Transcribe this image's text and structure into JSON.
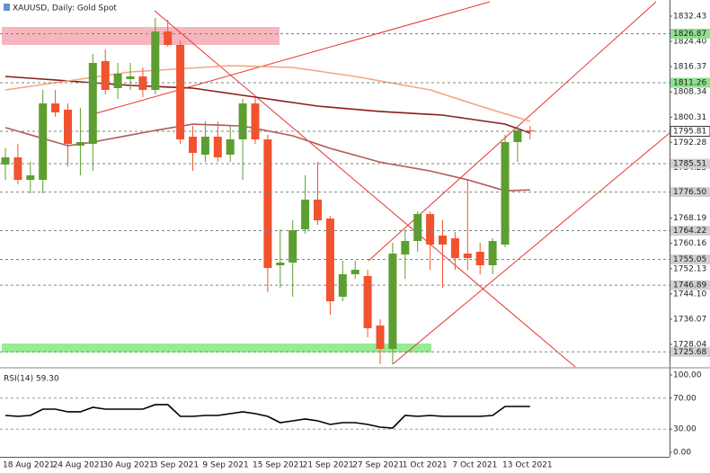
{
  "chart_data": [
    {
      "type": "candlestick",
      "title": "XAUUSD, Daily:  Gold Spot",
      "categories": [
        "18 Aug 2021",
        null,
        null,
        null,
        "24 Aug 2021",
        null,
        null,
        null,
        "30 Aug 2021",
        null,
        null,
        null,
        "3 Sep 2021",
        null,
        null,
        null,
        "9 Sep 2021",
        null,
        null,
        null,
        "15 Sep 2021",
        null,
        null,
        null,
        "21 Sep 2021",
        null,
        null,
        null,
        "27 Sep 2021",
        null,
        null,
        null,
        "1 Oct 2021",
        null,
        null,
        null,
        "7 Oct 2021",
        null,
        null,
        null,
        "13 Oct 2021",
        null,
        null
      ],
      "open": [
        1785.24,
        1787.53,
        1780.38,
        1780.38,
        1804.69,
        1802.69,
        1791.25,
        1791.82,
        1818.13,
        1809.55,
        1812.41,
        1813.27,
        1808.98,
        1827.57,
        1823.28,
        1794.11,
        1788.39,
        1794.11,
        1788.39,
        1793.25,
        1804.69,
        1793.25,
        1753.21,
        1754.07,
        1764.65,
        1774.09,
        1768.08,
        1743.2,
        1750.35,
        1749.78,
        1734.05,
        1726.61,
        1756.64,
        1760.93,
        1769.51,
        1762.65,
        1761.79,
        1756.93,
        1757.5,
        1753.21,
        1759.79,
        1792.39,
        1796.11
      ],
      "high": [
        1790.39,
        1791.82,
        1786.1,
        1808.98,
        1808.98,
        1804.69,
        1803.26,
        1820.42,
        1821.85,
        1817.56,
        1817.56,
        1816.13,
        1831.86,
        1831.29,
        1824.71,
        1797.54,
        1798.97,
        1798.97,
        1797.54,
        1806.12,
        1806.69,
        1794.68,
        1764.65,
        1767.51,
        1781.81,
        1786.1,
        1768.94,
        1754.64,
        1754.64,
        1751.78,
        1736.05,
        1760.36,
        1764.65,
        1770.37,
        1770.37,
        1767.51,
        1763.79,
        1780.38,
        1760.36,
        1761.79,
        1794.68,
        1797.54,
        1797.54
      ],
      "low": [
        1780.38,
        1778.95,
        1776.09,
        1776.09,
        1800.4,
        1784.67,
        1781.81,
        1783.24,
        1807.55,
        1806.12,
        1808.98,
        1806.69,
        1807.55,
        1822.71,
        1791.82,
        1783.24,
        1786.1,
        1786.1,
        1786.1,
        1780.38,
        1791.82,
        1744.63,
        1746.06,
        1743.2,
        1763.22,
        1766.08,
        1737.48,
        1741.77,
        1748.92,
        1730.33,
        1721.75,
        1721.75,
        1748.92,
        1757.5,
        1751.78,
        1746.06,
        1751.78,
        1751.78,
        1750.35,
        1750.35,
        1758.93,
        1786.1,
        1793.25
      ],
      "close": [
        1787.53,
        1780.38,
        1781.81,
        1804.69,
        1801.83,
        1791.82,
        1792.39,
        1817.56,
        1808.98,
        1814.13,
        1813.27,
        1808.98,
        1827.57,
        1823.28,
        1793.25,
        1788.96,
        1794.11,
        1787.53,
        1793.25,
        1804.69,
        1793.25,
        1752.35,
        1754.07,
        1764.36,
        1774.09,
        1767.51,
        1741.77,
        1750.35,
        1751.78,
        1733.19,
        1726.61,
        1756.93,
        1760.93,
        1769.51,
        1759.79,
        1759.79,
        1755.5,
        1755.5,
        1753.21,
        1760.93,
        1792.39,
        1796.11,
        1795.81
      ],
      "up_color": "#5c9e30",
      "down_color": "#f2522e",
      "ylim": [
        1720.89,
        1837.58
      ],
      "yticks": [
        1832.43,
        {
          "value": 1824.4,
          "label": "1824.40"
        },
        1816.37,
        1808.34,
        1800.31,
        1792.28,
        1784.25,
        1768.19,
        1760.16,
        1752.13,
        {
          "value": 1744.1,
          "label": "1744.10"
        },
        1736.07,
        1728.04
      ],
      "levels": [
        1826.87,
        1811.26,
        1795.81,
        1785.51,
        {
          "value": 1776.5,
          "label": "1776.50"
        },
        1764.22,
        1755.05,
        1746.89,
        1725.68
      ],
      "level_colors": [
        "#8fe08f",
        "#8fe08f",
        "#ffffff",
        "#d0d0d0",
        "#d0d0d0",
        "#d0d0d0",
        "#d0d0d0",
        "#d0d0d0",
        "#d0d0d0"
      ],
      "overlays": [
        {
          "color": "#8b1c1c",
          "values": [
            1813.27,
            1812.98,
            1812.7,
            1812.41,
            1812.13,
            1811.84,
            1811.55,
            1811.27,
            1810.98,
            1810.7,
            1810.41,
            1810.24,
            1810.07,
            1809.89,
            1809.72,
            1809.55,
            1808.98,
            1808.41,
            1807.83,
            1807.26,
            1806.69,
            1806.12,
            1805.54,
            1804.97,
            1804.4,
            1803.83,
            1803.49,
            1803.14,
            1802.8,
            1802.46,
            1802.12,
            1801.89,
            1801.66,
            1801.43,
            1801.2,
            1800.97,
            1800.4,
            1799.83,
            1799.25,
            1798.68,
            1798.11,
            1796.68,
            1795.25
          ]
        },
        {
          "color": "#f4a57c",
          "values": [
            1808.98,
            1809.55,
            1810.12,
            1810.7,
            1811.27,
            1811.84,
            1812.41,
            1812.98,
            1813.56,
            1814.13,
            1814.7,
            1814.95,
            1815.2,
            1815.45,
            1815.7,
            1815.95,
            1816.2,
            1816.45,
            1816.7,
            1816.59,
            1816.47,
            1816.36,
            1816.24,
            1816.13,
            1815.56,
            1814.99,
            1814.41,
            1813.84,
            1813.27,
            1812.56,
            1811.84,
            1811.13,
            1810.41,
            1809.7,
            1808.98,
            1807.69,
            1806.41,
            1805.12,
            1803.83,
            1802.62,
            1801.41,
            1800.21,
            1799.0
          ]
        },
        {
          "color": "#b45a5a",
          "values": [
            1797.0,
            1795.85,
            1794.7,
            1793.55,
            1792.4,
            1791.25,
            1791.8,
            1792.4,
            1793.14,
            1793.88,
            1794.62,
            1795.36,
            1796.1,
            1796.77,
            1797.43,
            1798.1,
            1797.95,
            1797.8,
            1797.65,
            1797.5,
            1796.73,
            1795.95,
            1795.18,
            1794.4,
            1793.07,
            1791.73,
            1790.4,
            1789.3,
            1788.2,
            1787.1,
            1786.0,
            1785.3,
            1784.6,
            1783.9,
            1783.2,
            1782.27,
            1781.33,
            1780.4,
            1779.23,
            1778.07,
            1776.9,
            1777.05,
            1777.2
          ]
        }
      ]
    },
    {
      "type": "line",
      "title": "RSI(14) 59.30",
      "color": "#000000",
      "values": [
        47.67,
        46.51,
        47.67,
        55.81,
        55.81,
        52.33,
        52.33,
        58.14,
        55.81,
        55.81,
        55.81,
        55.81,
        61.63,
        61.63,
        46.51,
        46.51,
        47.67,
        47.67,
        50,
        52.33,
        50,
        46.51,
        38.37,
        40.7,
        43.02,
        40.7,
        36.05,
        38.37,
        38.37,
        36.05,
        32.56,
        31.4,
        47.67,
        46.51,
        47.67,
        46.51,
        46.51,
        46.51,
        46.51,
        47.67,
        59.3,
        59.3,
        59.3
      ],
      "ylim": [
        -5.8,
        108.1
      ],
      "yticks": [
        {
          "value": 100,
          "label": "100.00"
        },
        {
          "value": 70,
          "label": "70.00"
        },
        {
          "value": 30,
          "label": "30.00"
        },
        {
          "value": 0,
          "label": "0.00"
        }
      ],
      "levels": [
        70,
        30
      ]
    }
  ]
}
